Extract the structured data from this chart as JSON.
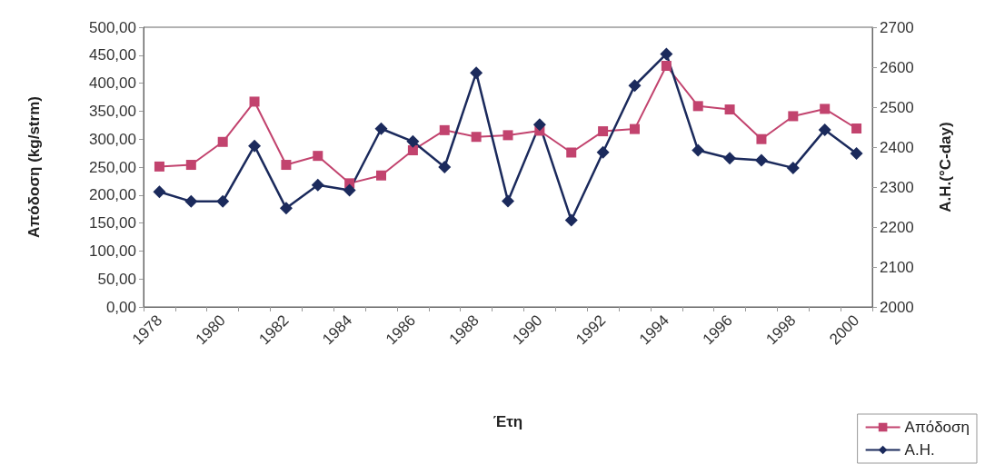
{
  "chart_data": {
    "type": "line",
    "xlabel": "Έτη",
    "ylabel": "Απόδοση (kg/strm)",
    "y2label": "Α.Η.(°C-day)",
    "categories": [
      "1978",
      null,
      "1980",
      null,
      "1982",
      null,
      "1984",
      null,
      "1986",
      null,
      "1988",
      null,
      "1990",
      null,
      "1992",
      null,
      "1994",
      null,
      "1996",
      null,
      "1998",
      null,
      "2000"
    ],
    "series": [
      {
        "name": "Απόδοση",
        "color": "#c2436e",
        "marker": "square",
        "values": [
          251,
          254,
          295,
          367,
          254,
          270,
          221,
          235,
          280,
          316,
          304,
          307,
          315,
          276,
          314,
          318,
          431,
          359,
          353,
          300,
          341,
          354,
          319
        ]
      },
      {
        "name": "Α.Η.",
        "color": "#1b2a5c",
        "marker": "diamond",
        "axis": "y2",
        "values": [
          2288,
          2264,
          2264,
          2403,
          2247,
          2305,
          2292,
          2446,
          2414,
          2350,
          2586,
          2265,
          2456,
          2217,
          2387,
          2554,
          2633,
          2392,
          2372,
          2367,
          2348,
          2443,
          2384
        ]
      }
    ],
    "ylim": [
      0,
      500
    ],
    "yticks": [
      {
        "value": 0,
        "label": "0,00"
      },
      {
        "value": 50,
        "label": "50,00"
      },
      {
        "value": 100,
        "label": "100,00"
      },
      {
        "value": 150,
        "label": "150,00"
      },
      {
        "value": 200,
        "label": "200,00"
      },
      {
        "value": 250,
        "label": "250,00"
      },
      {
        "value": 300,
        "label": "300,00"
      },
      {
        "value": 350,
        "label": "350,00"
      },
      {
        "value": 400,
        "label": "400,00"
      },
      {
        "value": 450,
        "label": "450,00"
      },
      {
        "value": 500,
        "label": "500,00"
      }
    ],
    "y2lim": [
      2000,
      2700
    ],
    "y2ticks": [
      2000,
      2100,
      2200,
      2300,
      2400,
      2500,
      2600,
      2700
    ],
    "grid": false,
    "legend": "bottom right",
    "line_style": "solid"
  }
}
